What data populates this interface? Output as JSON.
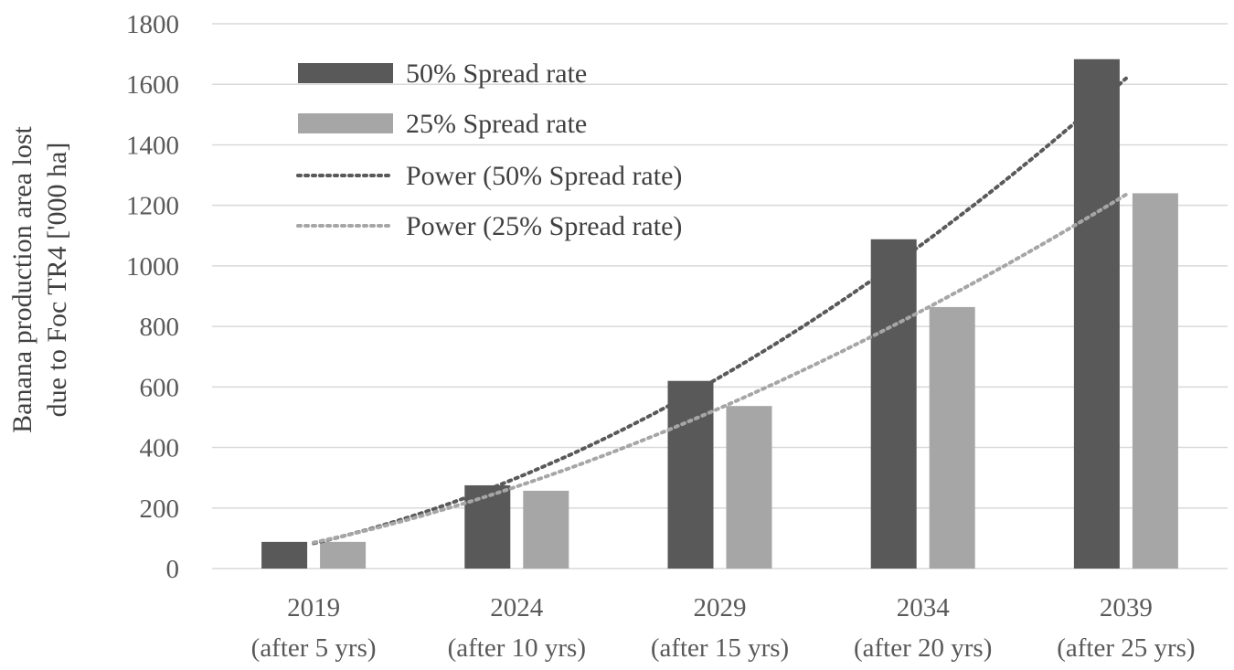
{
  "chart_data": {
    "type": "bar",
    "title": "",
    "ylabel_lines": [
      "Banana production area lost",
      "due to Foc TR4 ['000 ha]"
    ],
    "xlabel": "",
    "ylim": [
      0,
      1800
    ],
    "yticks": [
      0,
      200,
      400,
      600,
      800,
      1000,
      1200,
      1400,
      1600,
      1800
    ],
    "grid": true,
    "legend_position": "top-left",
    "categories": [
      {
        "year": "2019",
        "sub": "(after 5 yrs)"
      },
      {
        "year": "2024",
        "sub": "(after 10 yrs)"
      },
      {
        "year": "2029",
        "sub": "(after 15 yrs)"
      },
      {
        "year": "2034",
        "sub": "(after 20 yrs)"
      },
      {
        "year": "2039",
        "sub": "(after 25 yrs)"
      }
    ],
    "series": [
      {
        "name": "50% Spread rate",
        "color": "#595959",
        "values": [
          88,
          275,
          620,
          1088,
          1683
        ]
      },
      {
        "name": "25% Spread rate",
        "color": "#a6a6a6",
        "values": [
          88,
          257,
          537,
          864,
          1240
        ]
      }
    ],
    "trendlines": [
      {
        "name": "Power (50% Spread rate)",
        "color": "#595959",
        "type": "power",
        "of_series": 0
      },
      {
        "name": "Power (25% Spread rate)",
        "color": "#a6a6a6",
        "type": "power",
        "of_series": 1
      }
    ]
  }
}
